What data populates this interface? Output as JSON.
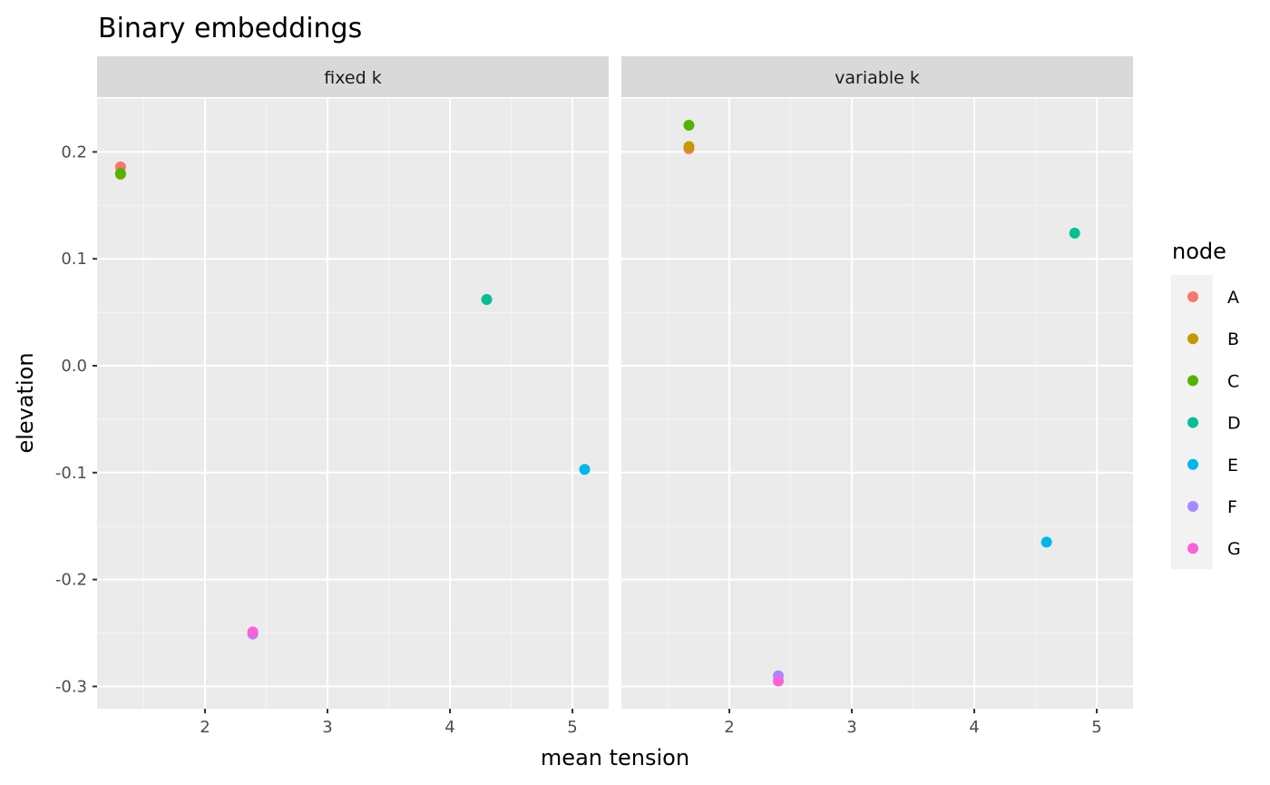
{
  "chart_data": {
    "type": "scatter",
    "title": "Binary embeddings",
    "xlabel": "mean tension",
    "ylabel": "elevation",
    "facets": [
      "fixed k",
      "variable k"
    ],
    "xlim": [
      1.13,
      5.29
    ],
    "ylim": [
      -0.32,
      0.245
    ],
    "x_ticks": [
      2,
      3,
      4,
      5
    ],
    "y_ticks": [
      0.2,
      0.1,
      0.0,
      -0.1,
      -0.2,
      -0.3
    ],
    "y_tick_labels": [
      "0.2",
      "0.1",
      "0.0",
      "-0.1",
      "-0.2",
      "-0.3"
    ],
    "grid": true,
    "legend": {
      "title": "node",
      "position": "right",
      "entries": [
        {
          "label": "A",
          "color": "#F8766D"
        },
        {
          "label": "B",
          "color": "#C49A00"
        },
        {
          "label": "C",
          "color": "#53B400"
        },
        {
          "label": "D",
          "color": "#00C094"
        },
        {
          "label": "E",
          "color": "#00B6EB"
        },
        {
          "label": "F",
          "color": "#A58AFF"
        },
        {
          "label": "G",
          "color": "#FB61D7"
        }
      ]
    },
    "series": [
      {
        "name": "A",
        "points": [
          {
            "facet": "fixed k",
            "x": 1.31,
            "y": 0.186
          },
          {
            "facet": "variable k",
            "x": 1.67,
            "y": 0.203
          }
        ]
      },
      {
        "name": "B",
        "points": [
          {
            "facet": "fixed k",
            "x": 1.31,
            "y": 0.179
          },
          {
            "facet": "variable k",
            "x": 1.67,
            "y": 0.205
          }
        ]
      },
      {
        "name": "C",
        "points": [
          {
            "facet": "fixed k",
            "x": 1.31,
            "y": 0.18
          },
          {
            "facet": "variable k",
            "x": 1.67,
            "y": 0.225
          }
        ]
      },
      {
        "name": "D",
        "points": [
          {
            "facet": "fixed k",
            "x": 4.3,
            "y": 0.062
          },
          {
            "facet": "variable k",
            "x": 4.82,
            "y": 0.124
          }
        ]
      },
      {
        "name": "E",
        "points": [
          {
            "facet": "fixed k",
            "x": 5.1,
            "y": -0.097
          },
          {
            "facet": "variable k",
            "x": 4.59,
            "y": -0.165
          }
        ]
      },
      {
        "name": "F",
        "points": [
          {
            "facet": "fixed k",
            "x": 2.39,
            "y": -0.251
          },
          {
            "facet": "variable k",
            "x": 2.4,
            "y": -0.29
          }
        ]
      },
      {
        "name": "G",
        "points": [
          {
            "facet": "fixed k",
            "x": 2.39,
            "y": -0.249
          },
          {
            "facet": "variable k",
            "x": 2.4,
            "y": -0.295
          }
        ]
      }
    ]
  }
}
